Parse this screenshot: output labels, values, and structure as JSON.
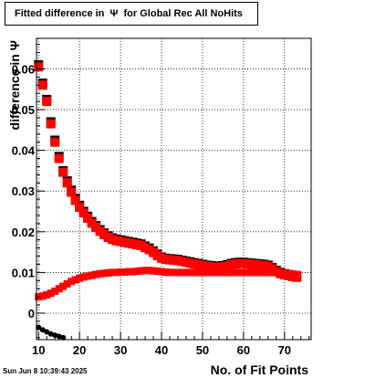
{
  "chart_data": {
    "type": "scatter",
    "title": "Fitted difference in  Ψ  for Global Rec All NoHits",
    "xlabel": "No. of Fit Points",
    "ylabel": "difference in  Ψ",
    "xlim": [
      9.5,
      76.5
    ],
    "ylim": [
      -0.0065,
      0.0675
    ],
    "x_ticks": [
      10,
      20,
      30,
      40,
      50,
      60,
      70
    ],
    "y_ticks": [
      0,
      0.01,
      0.02,
      0.03,
      0.04,
      0.05,
      0.06
    ],
    "y_tick_labels": [
      "0",
      "0.01",
      "0.02",
      "0.03",
      "0.04",
      "0.05",
      "0.06"
    ],
    "grid": true,
    "timestamp": "Sun Jun  8 10:39:43 2025",
    "colors": {
      "black_series": "#000000",
      "red_series": "#ff0000"
    },
    "series": [
      {
        "marker": "black-square",
        "x": [
          10,
          11,
          12,
          13,
          14,
          15,
          16,
          17,
          18,
          19,
          20,
          21,
          22,
          23,
          24,
          25,
          26,
          27,
          28,
          29,
          30,
          31,
          32,
          33,
          34,
          35,
          36,
          37,
          38,
          39,
          40,
          41,
          42,
          43,
          44,
          45,
          46,
          47,
          48,
          49,
          50,
          51,
          52,
          53,
          54,
          55,
          56,
          57,
          58,
          59,
          60,
          61,
          62,
          63,
          64,
          65,
          66,
          67,
          68,
          69,
          70,
          71,
          72,
          73
        ],
        "y": [
          0.061,
          0.0565,
          0.0525,
          0.047,
          0.0425,
          0.0385,
          0.035,
          0.0325,
          0.0302,
          0.0282,
          0.0265,
          0.025,
          0.0238,
          0.0225,
          0.0215,
          0.0205,
          0.0197,
          0.019,
          0.0185,
          0.0182,
          0.018,
          0.0178,
          0.0176,
          0.0174,
          0.0172,
          0.017,
          0.0165,
          0.016,
          0.0153,
          0.0145,
          0.0138,
          0.0135,
          0.0134,
          0.0133,
          0.0132,
          0.013,
          0.0128,
          0.0126,
          0.0124,
          0.0122,
          0.012,
          0.0118,
          0.0117,
          0.0116,
          0.0115,
          0.0117,
          0.0119,
          0.0122,
          0.0124,
          0.0125,
          0.0125,
          0.0124,
          0.0123,
          0.0122,
          0.0121,
          0.012,
          0.0118,
          0.0112,
          0.0105,
          0.01,
          0.0097,
          0.0095,
          0.0093,
          0.0091
        ]
      },
      {
        "marker": "red-square",
        "x": [
          10,
          11,
          12,
          13,
          14,
          15,
          16,
          17,
          18,
          19,
          20,
          21,
          22,
          23,
          24,
          25,
          26,
          27,
          28,
          29,
          30,
          31,
          32,
          33,
          34,
          35,
          36,
          37,
          38,
          39,
          40,
          41,
          42,
          43,
          44,
          45,
          46,
          47,
          48,
          49,
          50,
          51,
          52,
          53,
          54,
          55,
          56,
          57,
          58,
          59,
          60,
          61,
          62,
          63,
          64,
          65,
          66,
          67,
          68,
          69,
          70,
          71,
          72,
          73
        ],
        "y": [
          0.0605,
          0.056,
          0.052,
          0.0465,
          0.042,
          0.038,
          0.0346,
          0.032,
          0.0297,
          0.0277,
          0.026,
          0.0246,
          0.0233,
          0.0221,
          0.0211,
          0.0201,
          0.0193,
          0.0186,
          0.0181,
          0.0178,
          0.0176,
          0.0174,
          0.0172,
          0.017,
          0.0168,
          0.0166,
          0.0161,
          0.0156,
          0.0149,
          0.0141,
          0.0135,
          0.0132,
          0.0131,
          0.013,
          0.0129,
          0.0127,
          0.0125,
          0.0123,
          0.0121,
          0.0119,
          0.0117,
          0.0115,
          0.0114,
          0.0113,
          0.0112,
          0.0114,
          0.0116,
          0.0119,
          0.0121,
          0.0122,
          0.0122,
          0.0121,
          0.012,
          0.0119,
          0.0118,
          0.0117,
          0.0115,
          0.0109,
          0.0102,
          0.0097,
          0.0094,
          0.0092,
          0.009,
          0.0088
        ]
      },
      {
        "marker": "red-square-small",
        "x": [
          10,
          11,
          12,
          13,
          14,
          15,
          16,
          17,
          18,
          19,
          20,
          21,
          22,
          23,
          24,
          25,
          26,
          27,
          28,
          29,
          30,
          31,
          32,
          33,
          34,
          35,
          36,
          37,
          38,
          39,
          40,
          41,
          42,
          43,
          44,
          45,
          46,
          47,
          48,
          49,
          50,
          51,
          52,
          53,
          54,
          55,
          56,
          57,
          58,
          59,
          60,
          61,
          62,
          63,
          64,
          65,
          66,
          67,
          68,
          69,
          70,
          71,
          72,
          73
        ],
        "y": [
          0.004,
          0.0042,
          0.0045,
          0.0049,
          0.0054,
          0.006,
          0.0066,
          0.0072,
          0.0078,
          0.0082,
          0.0086,
          0.0089,
          0.0091,
          0.0093,
          0.0095,
          0.0097,
          0.0098,
          0.0099,
          0.01,
          0.01,
          0.0101,
          0.0101,
          0.0102,
          0.0102,
          0.0103,
          0.0104,
          0.0105,
          0.0105,
          0.0104,
          0.0103,
          0.0102,
          0.0101,
          0.01,
          0.01,
          0.01,
          0.01,
          0.01,
          0.01,
          0.01,
          0.01,
          0.01,
          0.01,
          0.01,
          0.01,
          0.01,
          0.01,
          0.01,
          0.01,
          0.01,
          0.01,
          0.01,
          0.01,
          0.01,
          0.01,
          0.01,
          0.01,
          0.01,
          0.01,
          0.01,
          0.0099,
          0.0098,
          0.0097,
          0.0096,
          0.0095
        ]
      },
      {
        "marker": "black-dot",
        "x": [
          10,
          11,
          12,
          13,
          14,
          15,
          16
        ],
        "y": [
          -0.0035,
          -0.0041,
          -0.0046,
          -0.0051,
          -0.0054,
          -0.0057,
          -0.006
        ]
      }
    ]
  }
}
